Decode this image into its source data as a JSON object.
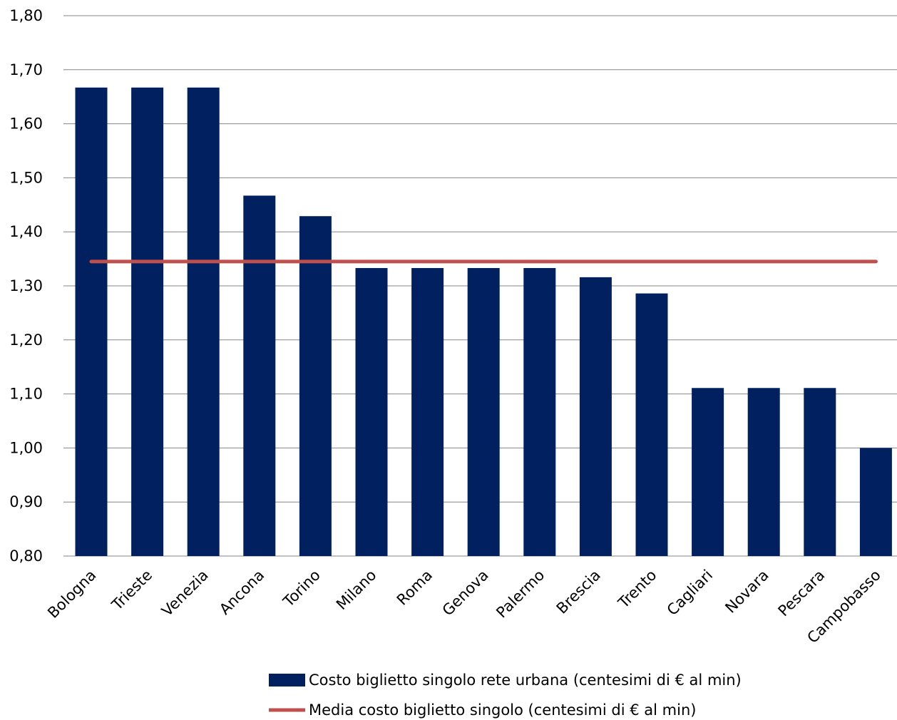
{
  "chart_data": {
    "type": "bar",
    "categories": [
      "Bologna",
      "Trieste",
      "Venezia",
      "Ancona",
      "Torino",
      "Milano",
      "Roma",
      "Genova",
      "Palermo",
      "Brescia",
      "Trento",
      "Cagliari",
      "Novara",
      "Pescara",
      "Campobasso"
    ],
    "series": [
      {
        "name": "Costo biglietto singolo rete urbana (centesimi di € al min)",
        "type": "bar",
        "color": "#002060",
        "values": [
          1.667,
          1.667,
          1.667,
          1.467,
          1.429,
          1.333,
          1.333,
          1.333,
          1.333,
          1.316,
          1.286,
          1.111,
          1.111,
          1.111,
          1.0
        ]
      },
      {
        "name": "Media costo biglietto singolo (centesimi di € al min)",
        "type": "line",
        "color": "#c0504d",
        "value": 1.345
      }
    ],
    "yticks": [
      "0,80",
      "0,90",
      "1,00",
      "1,10",
      "1,20",
      "1,30",
      "1,40",
      "1,50",
      "1,60",
      "1,70",
      "1,80"
    ],
    "ylim": [
      0.8,
      1.8
    ],
    "grid": true,
    "legend_position": "bottom"
  }
}
